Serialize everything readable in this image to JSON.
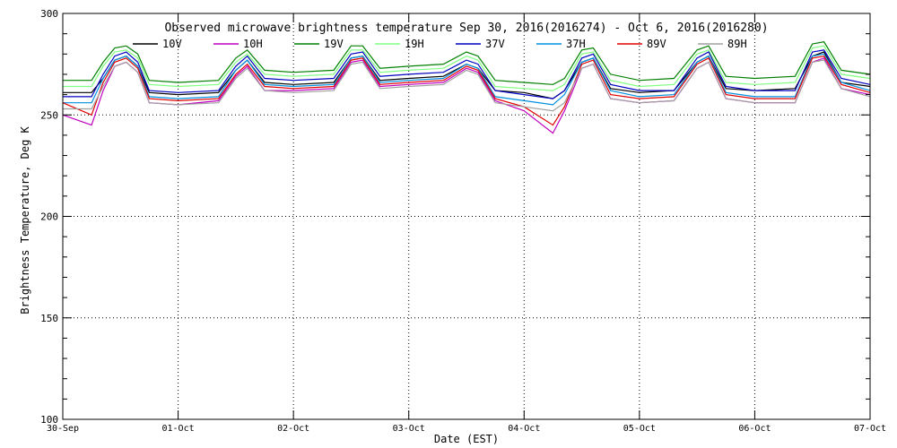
{
  "chart_data": {
    "type": "line",
    "title": "Observed microwave brightness temperature Sep 30, 2016(2016274) - Oct  6, 2016(2016280)",
    "xlabel": "Date (EST)",
    "ylabel": "Brightness Temperature, Deg K",
    "ylim": [
      100,
      300
    ],
    "xlim": [
      0,
      7
    ],
    "yticks": [
      100,
      150,
      200,
      250,
      300
    ],
    "xtick_labels": [
      "30-Sep",
      "01-Oct",
      "02-Oct",
      "03-Oct",
      "04-Oct",
      "05-Oct",
      "06-Oct",
      "07-Oct"
    ],
    "grid": true,
    "legend_position": "top",
    "x_units": "days since 30-Sep 00:00 EST",
    "series": [
      {
        "name": "10V",
        "color": "#000000",
        "x": [
          0,
          0.25,
          0.35,
          0.45,
          0.55,
          0.65,
          0.75,
          1.0,
          1.35,
          1.5,
          1.6,
          1.75,
          2.0,
          2.35,
          2.5,
          2.6,
          2.75,
          3.0,
          3.3,
          3.5,
          3.6,
          3.75,
          4.0,
          4.25,
          4.35,
          4.5,
          4.6,
          4.75,
          5.0,
          5.3,
          5.5,
          5.6,
          5.75,
          6.0,
          6.35,
          6.5,
          6.6,
          6.75,
          7.0
        ],
        "values": [
          261,
          261,
          268,
          277,
          279,
          274,
          261,
          260,
          261,
          272,
          277,
          266,
          265,
          266,
          278,
          279,
          267,
          268,
          269,
          275,
          273,
          262,
          261,
          258,
          262,
          276,
          278,
          263,
          261,
          262,
          276,
          279,
          263,
          262,
          263,
          279,
          281,
          266,
          264
        ]
      },
      {
        "name": "10H",
        "color": "#c000c0",
        "x": [
          0,
          0.25,
          0.35,
          0.45,
          0.55,
          0.65,
          0.75,
          1.0,
          1.35,
          1.5,
          1.6,
          1.75,
          2.0,
          2.35,
          2.5,
          2.6,
          2.75,
          3.0,
          3.3,
          3.5,
          3.6,
          3.75,
          4.0,
          4.25,
          4.35,
          4.5,
          4.6,
          4.75,
          5.0,
          5.3,
          5.5,
          5.6,
          5.75,
          6.0,
          6.35,
          6.5,
          6.6,
          6.75,
          7.0
        ],
        "values": [
          250,
          245,
          262,
          274,
          276,
          271,
          256,
          255,
          257,
          269,
          274,
          262,
          262,
          263,
          276,
          277,
          264,
          265,
          266,
          273,
          271,
          257,
          252,
          241,
          252,
          273,
          275,
          258,
          256,
          257,
          273,
          276,
          258,
          256,
          256,
          276,
          278,
          263,
          260
        ]
      },
      {
        "name": "19V",
        "color": "#008000",
        "x": [
          0,
          0.25,
          0.35,
          0.45,
          0.55,
          0.65,
          0.75,
          1.0,
          1.35,
          1.5,
          1.6,
          1.75,
          2.0,
          2.35,
          2.5,
          2.6,
          2.75,
          3.0,
          3.3,
          3.5,
          3.6,
          3.75,
          4.0,
          4.25,
          4.35,
          4.5,
          4.6,
          4.75,
          5.0,
          5.3,
          5.5,
          5.6,
          5.75,
          6.0,
          6.35,
          6.5,
          6.6,
          6.75,
          7.0
        ],
        "values": [
          267,
          267,
          276,
          283,
          284,
          280,
          267,
          266,
          267,
          278,
          282,
          272,
          271,
          272,
          284,
          284,
          273,
          274,
          275,
          281,
          279,
          267,
          266,
          265,
          268,
          282,
          283,
          270,
          267,
          268,
          282,
          284,
          269,
          268,
          269,
          285,
          286,
          272,
          270
        ]
      },
      {
        "name": "19H",
        "color": "#80ff80",
        "x": [
          0,
          0.25,
          0.35,
          0.45,
          0.55,
          0.65,
          0.75,
          1.0,
          1.35,
          1.5,
          1.6,
          1.75,
          2.0,
          2.35,
          2.5,
          2.6,
          2.75,
          3.0,
          3.3,
          3.5,
          3.6,
          3.75,
          4.0,
          4.25,
          4.35,
          4.5,
          4.6,
          4.75,
          5.0,
          5.3,
          5.5,
          5.6,
          5.75,
          6.0,
          6.35,
          6.5,
          6.6,
          6.75,
          7.0
        ],
        "values": [
          264,
          264,
          274,
          281,
          282,
          278,
          265,
          264,
          265,
          276,
          280,
          270,
          269,
          270,
          282,
          282,
          271,
          272,
          273,
          279,
          277,
          264,
          263,
          262,
          265,
          280,
          281,
          267,
          264,
          265,
          280,
          282,
          266,
          265,
          266,
          283,
          284,
          270,
          268
        ]
      },
      {
        "name": "37V",
        "color": "#0000c0",
        "x": [
          0,
          0.25,
          0.35,
          0.45,
          0.55,
          0.65,
          0.75,
          1.0,
          1.35,
          1.5,
          1.6,
          1.75,
          2.0,
          2.35,
          2.5,
          2.6,
          2.75,
          3.0,
          3.3,
          3.5,
          3.6,
          3.75,
          4.0,
          4.25,
          4.35,
          4.5,
          4.6,
          4.75,
          5.0,
          5.3,
          5.5,
          5.6,
          5.75,
          6.0,
          6.35,
          6.5,
          6.6,
          6.75,
          7.0
        ],
        "values": [
          259,
          259,
          270,
          279,
          281,
          276,
          262,
          261,
          262,
          274,
          279,
          268,
          267,
          268,
          280,
          281,
          269,
          270,
          271,
          277,
          275,
          262,
          260,
          258,
          262,
          278,
          280,
          265,
          262,
          262,
          278,
          281,
          264,
          262,
          262,
          281,
          282,
          268,
          265
        ]
      },
      {
        "name": "37H",
        "color": "#0090e0",
        "x": [
          0,
          0.25,
          0.35,
          0.45,
          0.55,
          0.65,
          0.75,
          1.0,
          1.35,
          1.5,
          1.6,
          1.75,
          2.0,
          2.35,
          2.5,
          2.6,
          2.75,
          3.0,
          3.3,
          3.5,
          3.6,
          3.75,
          4.0,
          4.25,
          4.35,
          4.5,
          4.6,
          4.75,
          5.0,
          5.3,
          5.5,
          5.6,
          5.75,
          6.0,
          6.35,
          6.5,
          6.6,
          6.75,
          7.0
        ],
        "values": [
          256,
          256,
          268,
          277,
          279,
          274,
          259,
          258,
          259,
          272,
          277,
          265,
          264,
          265,
          278,
          279,
          266,
          267,
          268,
          275,
          273,
          259,
          257,
          255,
          260,
          276,
          278,
          262,
          259,
          260,
          276,
          279,
          261,
          259,
          259,
          279,
          280,
          266,
          262
        ]
      },
      {
        "name": "89V",
        "color": "#e00000",
        "x": [
          0,
          0.25,
          0.35,
          0.45,
          0.55,
          0.65,
          0.75,
          1.0,
          1.35,
          1.5,
          1.6,
          1.75,
          2.0,
          2.35,
          2.5,
          2.6,
          2.75,
          3.0,
          3.3,
          3.5,
          3.6,
          3.75,
          4.0,
          4.25,
          4.35,
          4.5,
          4.6,
          4.75,
          5.0,
          5.3,
          5.5,
          5.6,
          5.75,
          6.0,
          6.35,
          6.5,
          6.6,
          6.75,
          7.0
        ],
        "values": [
          256,
          250,
          266,
          276,
          278,
          273,
          258,
          257,
          258,
          270,
          275,
          264,
          263,
          264,
          277,
          278,
          265,
          266,
          267,
          274,
          272,
          258,
          254,
          245,
          254,
          275,
          277,
          260,
          258,
          259,
          275,
          278,
          260,
          258,
          258,
          278,
          279,
          265,
          261
        ]
      },
      {
        "name": "89H",
        "color": "#a0a0a0",
        "x": [
          0,
          0.25,
          0.35,
          0.45,
          0.55,
          0.65,
          0.75,
          1.0,
          1.35,
          1.5,
          1.6,
          1.75,
          2.0,
          2.35,
          2.5,
          2.6,
          2.75,
          3.0,
          3.3,
          3.5,
          3.6,
          3.75,
          4.0,
          4.25,
          4.35,
          4.5,
          4.6,
          4.75,
          5.0,
          5.3,
          5.5,
          5.6,
          5.75,
          6.0,
          6.35,
          6.5,
          6.6,
          6.75,
          7.0
        ],
        "values": [
          253,
          253,
          264,
          274,
          276,
          271,
          256,
          255,
          256,
          268,
          273,
          262,
          261,
          262,
          275,
          276,
          263,
          264,
          265,
          272,
          270,
          256,
          254,
          252,
          256,
          273,
          275,
          258,
          256,
          257,
          273,
          276,
          258,
          256,
          256,
          276,
          277,
          263,
          259
        ]
      }
    ]
  }
}
